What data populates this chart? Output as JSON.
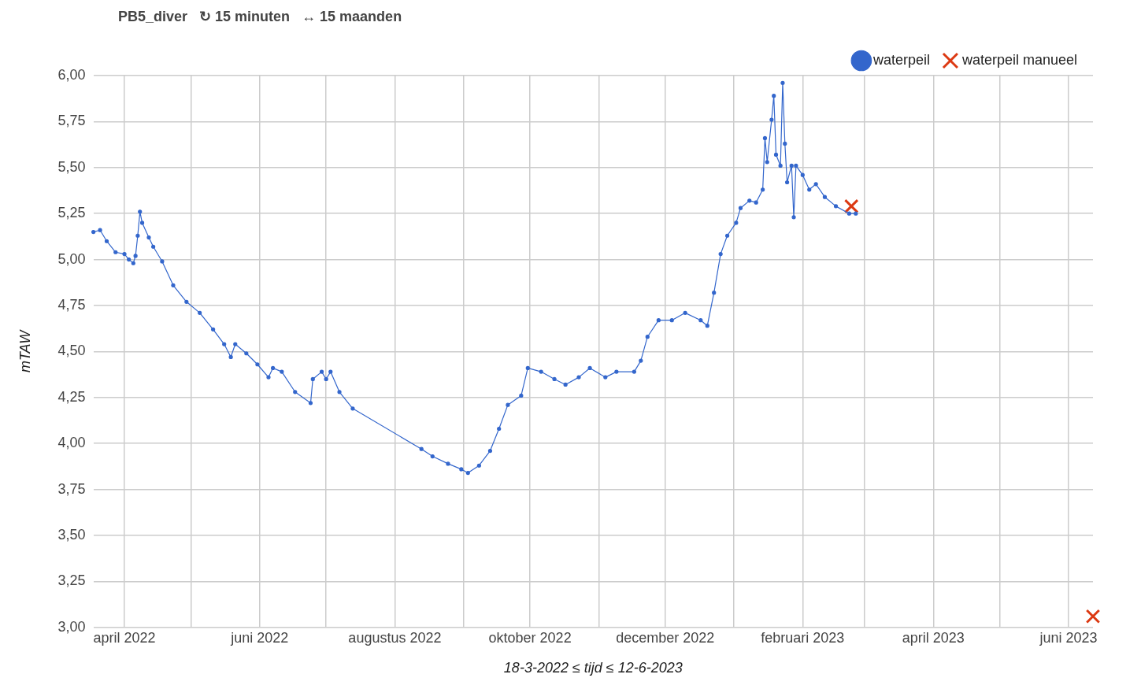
{
  "chart_data": {
    "type": "line",
    "title": "PB5_diver   ↻ 15 minuten   ↔ 15 maanden",
    "xlabel": "18-3-2022 ≤ tijd ≤ 12-6-2023",
    "ylabel": "mTAW",
    "xlim": [
      "2022-03-18",
      "2023-06-12"
    ],
    "xticks": [
      {
        "value": "2022-04-01",
        "label": "april 2022"
      },
      {
        "value": "2022-05-01",
        "label": null
      },
      {
        "value": "2022-06-01",
        "label": "juni 2022"
      },
      {
        "value": "2022-07-01",
        "label": null
      },
      {
        "value": "2022-08-01",
        "label": "augustus 2022"
      },
      {
        "value": "2022-09-01",
        "label": null
      },
      {
        "value": "2022-10-01",
        "label": "oktober 2022"
      },
      {
        "value": "2022-11-01",
        "label": null
      },
      {
        "value": "2022-12-01",
        "label": "december 2022"
      },
      {
        "value": "2023-01-01",
        "label": null
      },
      {
        "value": "2023-02-01",
        "label": "februari 2023"
      },
      {
        "value": "2023-03-01",
        "label": null
      },
      {
        "value": "2023-04-01",
        "label": "april 2023"
      },
      {
        "value": "2023-05-01",
        "label": null
      },
      {
        "value": "2023-06-01",
        "label": "juni 2023"
      }
    ],
    "ylim": [
      3,
      6
    ],
    "yticks": [
      {
        "value": 3,
        "label": "3,00"
      },
      {
        "value": 3.25,
        "label": "3,25"
      },
      {
        "value": 3.5,
        "label": "3,50"
      },
      {
        "value": 3.75,
        "label": "3,75"
      },
      {
        "value": 4,
        "label": "4,00"
      },
      {
        "value": 4.25,
        "label": "4,25"
      },
      {
        "value": 4.5,
        "label": "4,50"
      },
      {
        "value": 4.75,
        "label": "4,75"
      },
      {
        "value": 5,
        "label": "5,00"
      },
      {
        "value": 5.25,
        "label": "5,25"
      },
      {
        "value": 5.5,
        "label": "5,50"
      },
      {
        "value": 5.75,
        "label": "5,75"
      },
      {
        "value": 6,
        "label": "6,00"
      }
    ],
    "grid": true,
    "legend": "top right",
    "series": [
      {
        "name": "waterpeil",
        "type": "line",
        "color": "#3366cc",
        "marker": "circle",
        "line_style": "solid",
        "x": [
          "2022-03-18",
          "2022-03-21",
          "2022-03-24",
          "2022-03-28",
          "2022-04-01",
          "2022-04-03",
          "2022-04-05",
          "2022-04-06",
          "2022-04-07",
          "2022-04-08",
          "2022-04-09",
          "2022-04-12",
          "2022-04-14",
          "2022-04-18",
          "2022-04-23",
          "2022-04-29",
          "2022-05-05",
          "2022-05-11",
          "2022-05-16",
          "2022-05-19",
          "2022-05-21",
          "2022-05-26",
          "2022-05-31",
          "2022-06-05",
          "2022-06-07",
          "2022-06-11",
          "2022-06-17",
          "2022-06-24",
          "2022-06-25",
          "2022-06-29",
          "2022-07-01",
          "2022-07-03",
          "2022-07-07",
          "2022-07-13",
          "2022-08-13",
          "2022-08-18",
          "2022-08-25",
          "2022-08-31",
          "2022-09-03",
          "2022-09-08",
          "2022-09-13",
          "2022-09-17",
          "2022-09-21",
          "2022-09-27",
          "2022-09-30",
          "2022-10-06",
          "2022-10-12",
          "2022-10-17",
          "2022-10-23",
          "2022-10-28",
          "2022-11-04",
          "2022-11-09",
          "2022-11-17",
          "2022-11-20",
          "2022-11-23",
          "2022-11-28",
          "2022-12-04",
          "2022-12-10",
          "2022-12-17",
          "2022-12-20",
          "2022-12-23",
          "2022-12-26",
          "2022-12-29",
          "2023-01-02",
          "2023-01-04",
          "2023-01-08",
          "2023-01-11",
          "2023-01-14",
          "2023-01-15",
          "2023-01-16",
          "2023-01-18",
          "2023-01-19",
          "2023-01-20",
          "2023-01-22",
          "2023-01-23",
          "2023-01-24",
          "2023-01-25",
          "2023-01-27",
          "2023-01-28",
          "2023-01-29",
          "2023-02-01",
          "2023-02-04",
          "2023-02-07",
          "2023-02-11",
          "2023-02-16",
          "2023-02-22",
          "2023-02-25"
        ],
        "values": [
          5.15,
          5.16,
          5.1,
          5.04,
          5.03,
          5,
          4.98,
          5.02,
          5.13,
          5.26,
          5.2,
          5.12,
          5.07,
          4.99,
          4.86,
          4.77,
          4.71,
          4.62,
          4.54,
          4.47,
          4.54,
          4.49,
          4.43,
          4.36,
          4.41,
          4.39,
          4.28,
          4.22,
          4.35,
          4.39,
          4.35,
          4.39,
          4.28,
          4.19,
          3.97,
          3.93,
          3.89,
          3.86,
          3.84,
          3.88,
          3.96,
          4.08,
          4.21,
          4.26,
          4.41,
          4.39,
          4.35,
          4.32,
          4.36,
          4.41,
          4.36,
          4.39,
          4.39,
          4.45,
          4.58,
          4.67,
          4.67,
          4.71,
          4.67,
          4.64,
          4.82,
          5.03,
          5.13,
          5.2,
          5.28,
          5.32,
          5.31,
          5.38,
          5.66,
          5.53,
          5.76,
          5.89,
          5.57,
          5.51,
          5.96,
          5.63,
          5.42,
          5.51,
          5.23,
          5.51,
          5.46,
          5.38,
          5.41,
          5.34,
          5.29,
          5.25,
          5.25
        ]
      },
      {
        "name": "waterpeil manueel",
        "type": "scatter",
        "color": "#dc3912",
        "marker": "cross",
        "x": [
          "2023-02-23",
          "2023-06-12"
        ],
        "values": [
          5.29,
          3.06
        ]
      }
    ]
  }
}
